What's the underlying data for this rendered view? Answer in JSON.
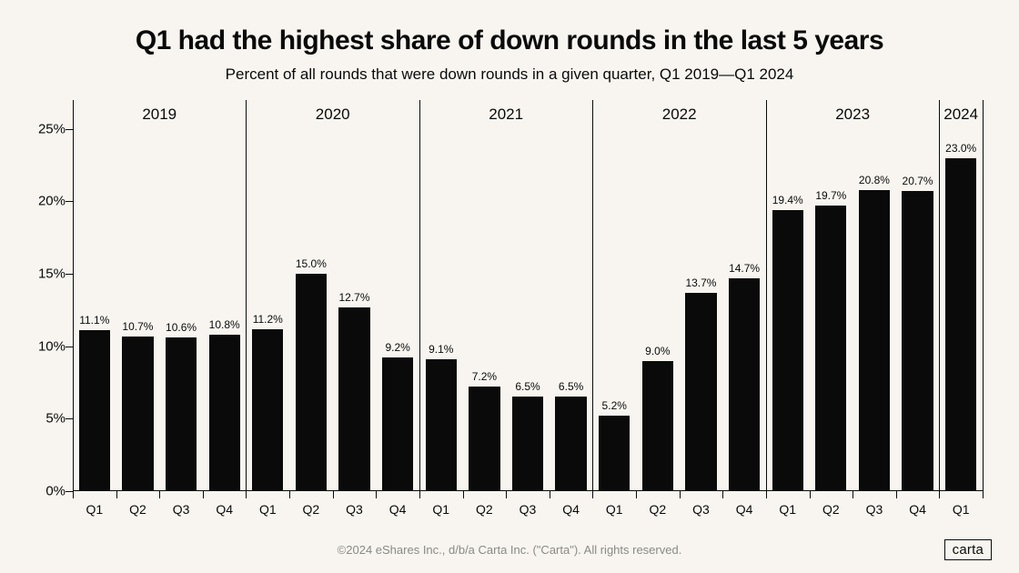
{
  "background_color": "#f8f5f0",
  "text_color": "#0a0a0a",
  "title": "Q1 had the highest share of down rounds in the last 5 years",
  "subtitle": "Percent of all rounds that were down rounds in a given quarter, Q1 2019—Q1 2024",
  "footer": "©2024 eShares Inc., d/b/a Carta Inc. (\"Carta\"). All rights reserved.",
  "footer_color": "#8a8a86",
  "brand": "carta",
  "brand_border_color": "#0a0a0a",
  "chart": {
    "type": "bar",
    "ylim": [
      0,
      27
    ],
    "ytick_step": 5,
    "ytick_max": 25,
    "ytick_suffix": "%",
    "axis_color": "#0a0a0a",
    "separator_color": "#0a0a0a",
    "bar_color": "#0a0a0a",
    "bar_width_ratio": 0.72,
    "value_label_suffix": "%",
    "value_label_color": "#0a0a0a",
    "x_label_color": "#0a0a0a",
    "groups": [
      {
        "label": "2019",
        "bars": [
          {
            "x": "Q1",
            "v": 11.1
          },
          {
            "x": "Q2",
            "v": 10.7
          },
          {
            "x": "Q3",
            "v": 10.6
          },
          {
            "x": "Q4",
            "v": 10.8
          }
        ]
      },
      {
        "label": "2020",
        "bars": [
          {
            "x": "Q1",
            "v": 11.2
          },
          {
            "x": "Q2",
            "v": 15.0
          },
          {
            "x": "Q3",
            "v": 12.7
          },
          {
            "x": "Q4",
            "v": 9.2
          }
        ]
      },
      {
        "label": "2021",
        "bars": [
          {
            "x": "Q1",
            "v": 9.1
          },
          {
            "x": "Q2",
            "v": 7.2
          },
          {
            "x": "Q3",
            "v": 6.5
          },
          {
            "x": "Q4",
            "v": 6.5
          }
        ]
      },
      {
        "label": "2022",
        "bars": [
          {
            "x": "Q1",
            "v": 5.2
          },
          {
            "x": "Q2",
            "v": 9.0
          },
          {
            "x": "Q3",
            "v": 13.7
          },
          {
            "x": "Q4",
            "v": 14.7
          }
        ]
      },
      {
        "label": "2023",
        "bars": [
          {
            "x": "Q1",
            "v": 19.4
          },
          {
            "x": "Q2",
            "v": 19.7
          },
          {
            "x": "Q3",
            "v": 20.8
          },
          {
            "x": "Q4",
            "v": 20.7
          }
        ]
      },
      {
        "label": "2024",
        "bars": [
          {
            "x": "Q1",
            "v": 23.0
          }
        ]
      }
    ]
  }
}
